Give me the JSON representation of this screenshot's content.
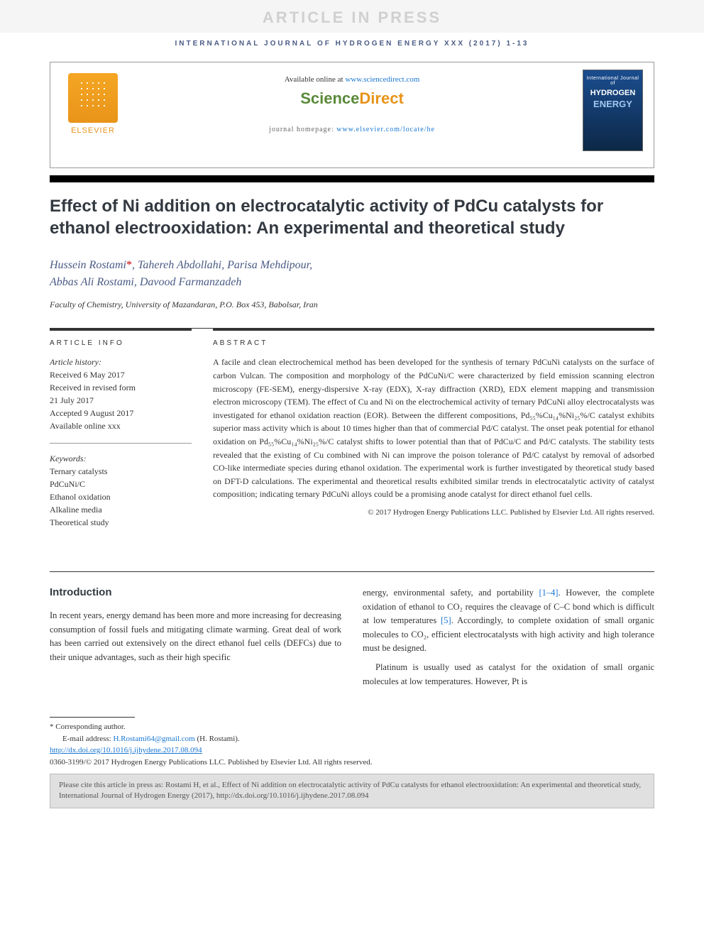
{
  "watermark": "ARTICLE IN PRESS",
  "running_head": "INTERNATIONAL JOURNAL OF HYDROGEN ENERGY XXX (2017) 1-13",
  "header": {
    "available_prefix": "Available online at ",
    "available_link": "www.sciencedirect.com",
    "sd_science": "Science",
    "sd_direct": "Direct",
    "homepage_prefix": "journal homepage: ",
    "homepage_link": "www.elsevier.com/locate/he",
    "publisher_name": "ELSEVIER",
    "cover_eyebrow": "International Journal of",
    "cover_main": "HYDROGEN",
    "cover_sub": "ENERGY"
  },
  "title": "Effect of Ni addition on electrocatalytic activity of PdCu catalysts for ethanol electrooxidation: An experimental and theoretical study",
  "authors_line1": "Hussein Rostami",
  "authors_star": "*",
  "authors_line1b": ", Tahereh Abdollahi, Parisa Mehdipour,",
  "authors_line2": "Abbas Ali Rostami, Davood Farmanzadeh",
  "affiliation": "Faculty of Chemistry, University of Mazandaran, P.O. Box 453, Babolsar, Iran",
  "article_info": {
    "head": "ARTICLE INFO",
    "history_label": "Article history:",
    "received": "Received 6 May 2017",
    "revised1": "Received in revised form",
    "revised2": "21 July 2017",
    "accepted": "Accepted 9 August 2017",
    "online": "Available online xxx",
    "keywords_label": "Keywords:",
    "keywords": [
      "Ternary catalysts",
      "PdCuNi/C",
      "Ethanol oxidation",
      "Alkaline media",
      "Theoretical study"
    ]
  },
  "abstract": {
    "head": "ABSTRACT",
    "text": "A facile and clean electrochemical method has been developed for the synthesis of ternary PdCuNi catalysts on the surface of carbon Vulcan. The composition and morphology of the PdCuNi/C were characterized by field emission scanning electron microscopy (FE-SEM), energy-dispersive X-ray (EDX), X-ray diffraction (XRD), EDX element mapping and transmission electron microscopy (TEM). The effect of Cu and Ni on the electrochemical activity of ternary PdCuNi alloy electrocatalysts was investigated for ethanol oxidation reaction (EOR). Between the different compositions, Pd₅₅%Cu₁₄%Ni₂₅%/C catalyst exhibits superior mass activity which is about 10 times higher than that of commercial Pd/C catalyst. The onset peak potential for ethanol oxidation on Pd₅₅%Cu₁₄%Ni₂₅%/C catalyst shifts to lower potential than that of PdCu/C and Pd/C catalysts. The stability tests revealed that the existing of Cu combined with Ni can improve the poison tolerance of Pd/C catalyst by removal of adsorbed CO-like intermediate species during ethanol oxidation. The experimental work is further investigated by theoretical study based on DFT-D calculations. The experimental and theoretical results exhibited similar trends in electrocatalytic activity of catalyst composition; indicating ternary PdCuNi alloys could be a promising anode catalyst for direct ethanol fuel cells.",
    "copyright": "© 2017 Hydrogen Energy Publications LLC. Published by Elsevier Ltd. All rights reserved."
  },
  "body": {
    "intro_head": "Introduction",
    "para1": "In recent years, energy demand has been more and more increasing for decreasing consumption of fossil fuels and mitigating climate warming. Great deal of work has been carried out extensively on the direct ethanol fuel cells (DEFCs) due to their unique advantages, such as their high specific",
    "para2a": "energy, environmental safety, and portability ",
    "ref1": "[1–4]",
    "para2b": ". However, the complete oxidation of ethanol to CO₂ requires the cleavage of C–C bond which is difficult at low temperatures ",
    "ref2": "[5]",
    "para2c": ". Accordingly, to complete oxidation of small organic molecules to CO₂, efficient electrocatalysts with high activity and high tolerance must be designed.",
    "para3": "Platinum is usually used as catalyst for the oxidation of small organic molecules at low temperatures. However, Pt is"
  },
  "footer": {
    "corr": "* Corresponding author.",
    "email_label": "E-mail address: ",
    "email": "H.Rostami64@gmail.com",
    "email_suffix": " (H. Rostami).",
    "doi": "http://dx.doi.org/10.1016/j.ijhydene.2017.08.094",
    "issn": "0360-3199/© 2017 Hydrogen Energy Publications LLC. Published by Elsevier Ltd. All rights reserved."
  },
  "cite_box": "Please cite this article in press as: Rostami H, et al., Effect of Ni addition on electrocatalytic activity of PdCu catalysts for ethanol electrooxidation: An experimental and theoretical study, International Journal of Hydrogen Energy (2017), http://dx.doi.org/10.1016/j.ijhydene.2017.08.094",
  "colors": {
    "link": "#1976d2",
    "heading": "#333941",
    "running_head": "#4a5a85",
    "orange": "#e8941a",
    "green": "#5a8a3a"
  }
}
